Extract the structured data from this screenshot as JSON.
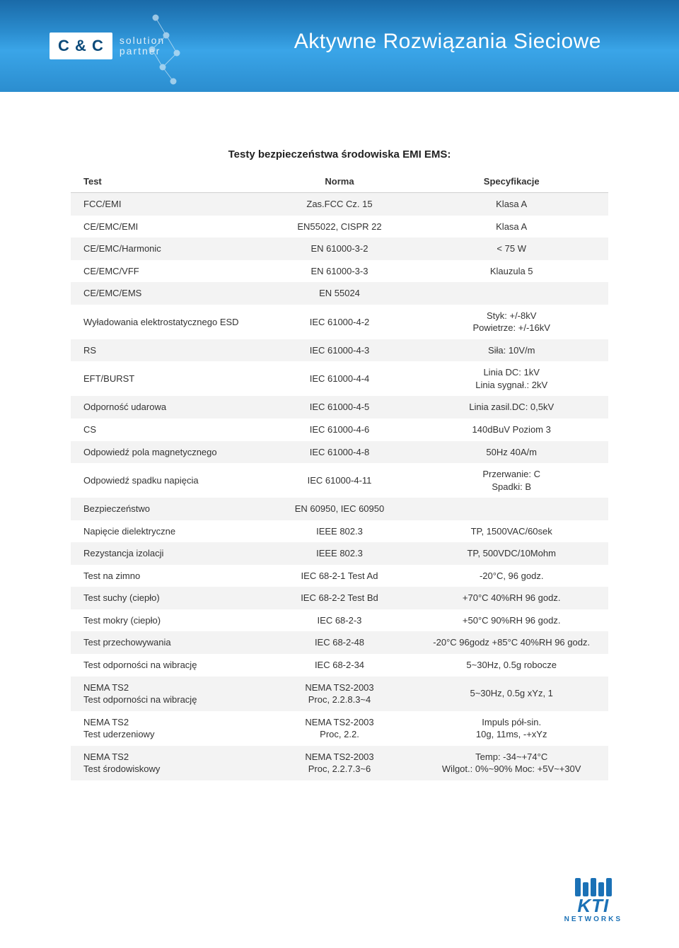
{
  "header": {
    "logo_box": "C & C",
    "logo_line1": "solution",
    "logo_line2": "partner",
    "title": "Aktywne Rozwiązania Sieciowe"
  },
  "table": {
    "title": "Testy bezpieczeństwa środowiska EMI EMS:",
    "columns": [
      "Test",
      "Norma",
      "Specyfikacje"
    ],
    "rows": [
      [
        "FCC/EMI",
        "Zas.FCC Cz. 15",
        "Klasa A"
      ],
      [
        "CE/EMC/EMI",
        "EN55022, CISPR 22",
        "Klasa A"
      ],
      [
        "CE/EMC/Harmonic",
        "EN 61000-3-2",
        "< 75 W"
      ],
      [
        "CE/EMC/VFF",
        "EN 61000-3-3",
        "Klauzula 5"
      ],
      [
        "CE/EMC/EMS",
        "EN 55024",
        ""
      ],
      [
        "Wyładowania elektrostatycznego ESD",
        "IEC 61000-4-2",
        "Styk: +/-8kV\nPowietrze: +/-16kV"
      ],
      [
        "RS",
        "IEC 61000-4-3",
        "Siła: 10V/m"
      ],
      [
        "EFT/BURST",
        "IEC 61000-4-4",
        "Linia DC: 1kV\nLinia sygnał.: 2kV"
      ],
      [
        "Odporność udarowa",
        "IEC 61000-4-5",
        "Linia zasil.DC: 0,5kV"
      ],
      [
        "CS",
        "IEC 61000-4-6",
        "140dBuV Poziom 3"
      ],
      [
        "Odpowiedź pola magnetycznego",
        "IEC 61000-4-8",
        "50Hz 40A/m"
      ],
      [
        "Odpowiedź spadku napięcia",
        "IEC 61000-4-11",
        "Przerwanie: C\nSpadki: B"
      ],
      [
        "Bezpieczeństwo",
        "EN 60950, IEC 60950",
        ""
      ],
      [
        "Napięcie dielektryczne",
        "IEEE 802.3",
        "TP, 1500VAC/60sek"
      ],
      [
        "Rezystancja izolacji",
        "IEEE 802.3",
        "TP, 500VDC/10Mohm"
      ],
      [
        "Test na zimno",
        "IEC 68-2-1 Test Ad",
        "-20°C, 96 godz."
      ],
      [
        "Test suchy (ciepło)",
        "IEC 68-2-2 Test Bd",
        "+70°C 40%RH 96 godz."
      ],
      [
        "Test mokry (ciepło)",
        "IEC 68-2-3",
        "+50°C 90%RH 96 godz."
      ],
      [
        "Test przechowywania",
        "IEC 68-2-48",
        "-20°C 96godz +85°C 40%RH 96 godz."
      ],
      [
        "Test odporności na wibrację",
        "IEC 68-2-34",
        "5~30Hz, 0.5g robocze"
      ],
      [
        "NEMA TS2\nTest odporności na wibrację",
        "NEMA TS2-2003\nProc, 2.2.8.3~4",
        "5~30Hz, 0.5g xYz, 1"
      ],
      [
        "NEMA TS2\nTest uderzeniowy",
        "NEMA TS2-2003\nProc, 2.2.",
        "Impuls pół-sin.\n10g, 11ms, -+xYz"
      ],
      [
        "NEMA TS2\nTest środowiskowy",
        "NEMA TS2-2003\nProc, 2.2.7.3~6",
        "Temp: -34~+74°C\nWilgot.: 0%~90% Moc: +5V~+30V"
      ]
    ]
  },
  "footer": {
    "brand": "KTI",
    "sub": "NETWORKS"
  },
  "colors": {
    "header_gradient_top": "#1a6aa8",
    "header_gradient_mid": "#3aa5e8",
    "row_alt": "#f3f3f3",
    "brand_blue": "#1b71b6"
  }
}
